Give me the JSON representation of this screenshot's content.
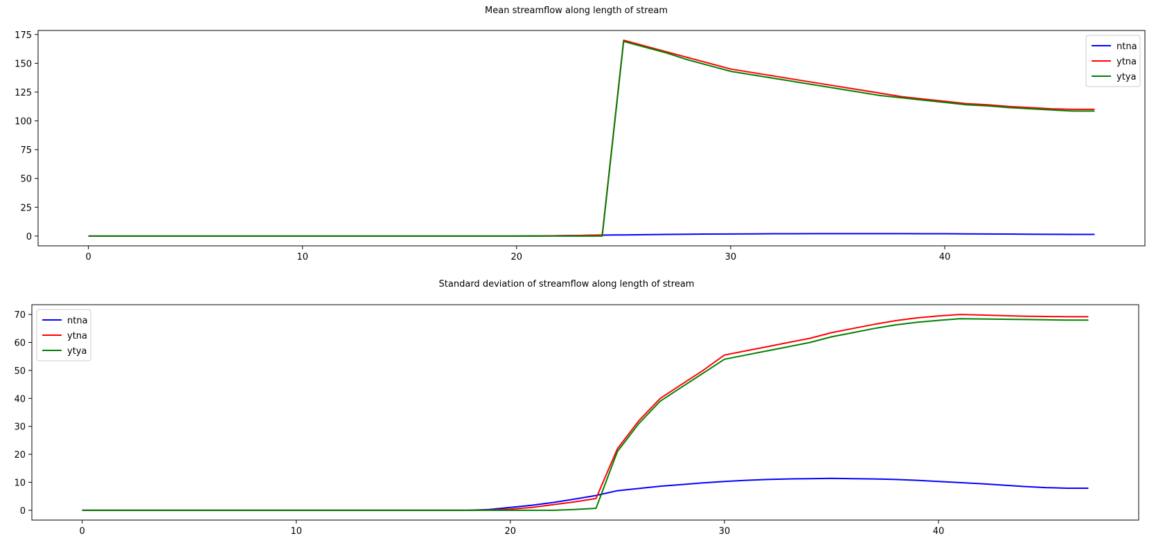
{
  "chart_data": [
    {
      "type": "line",
      "title": "Mean streamflow along length of stream",
      "xlabel": "",
      "ylabel": "",
      "xlim": [
        -2.35,
        49.35
      ],
      "ylim": [
        -8.5,
        178.5
      ],
      "xticks": [
        0,
        10,
        20,
        30,
        40
      ],
      "yticks": [
        0,
        25,
        50,
        75,
        100,
        125,
        150,
        175
      ],
      "grid": false,
      "legend_position": "top-right",
      "x": [
        0,
        1,
        2,
        3,
        4,
        5,
        6,
        7,
        8,
        9,
        10,
        11,
        12,
        13,
        14,
        15,
        16,
        17,
        18,
        19,
        20,
        21,
        22,
        23,
        24,
        25,
        26,
        27,
        28,
        29,
        30,
        31,
        32,
        33,
        34,
        35,
        36,
        37,
        38,
        39,
        40,
        41,
        42,
        43,
        44,
        45,
        46,
        47
      ],
      "series": [
        {
          "name": "ntna",
          "color": "#0000ff",
          "values": [
            0,
            0,
            0,
            0,
            0,
            0,
            0,
            0,
            0,
            0,
            0,
            0,
            0,
            0,
            0,
            0,
            0,
            0,
            0,
            0,
            0,
            0.1,
            0.3,
            0.5,
            0.8,
            1.0,
            1.2,
            1.4,
            1.6,
            1.7,
            1.8,
            1.9,
            2.0,
            2.0,
            2.1,
            2.1,
            2.1,
            2.1,
            2.1,
            2.0,
            2.0,
            1.9,
            1.8,
            1.7,
            1.6,
            1.5,
            1.4,
            1.4
          ]
        },
        {
          "name": "ytna",
          "color": "#ff0000",
          "values": [
            0,
            0,
            0,
            0,
            0,
            0,
            0,
            0,
            0,
            0,
            0,
            0,
            0,
            0,
            0,
            0,
            0,
            0,
            0,
            0,
            0,
            0.1,
            0.3,
            0.5,
            1.0,
            170,
            165,
            160,
            155,
            150,
            145,
            142,
            139,
            136,
            133,
            130,
            127,
            124,
            121,
            119,
            117,
            115,
            114,
            112.5,
            111.5,
            110.5,
            110,
            110
          ]
        },
        {
          "name": "ytya",
          "color": "#008000",
          "values": [
            0,
            0,
            0,
            0,
            0,
            0,
            0,
            0,
            0,
            0,
            0,
            0,
            0,
            0,
            0,
            0,
            0,
            0,
            0,
            0,
            0,
            0,
            0,
            0,
            0,
            169,
            164,
            159,
            153,
            148,
            143,
            140,
            137,
            134,
            131,
            128,
            125,
            122,
            120,
            118,
            116,
            114,
            113,
            111.5,
            110.5,
            109.5,
            108.5,
            108.5
          ]
        }
      ]
    },
    {
      "type": "line",
      "title": "Standard deviation of streamflow along length of stream",
      "xlabel": "",
      "ylabel": "",
      "xlim": [
        -2.35,
        49.35
      ],
      "ylim": [
        -3.5,
        73.5
      ],
      "xticks": [
        0,
        10,
        20,
        30,
        40
      ],
      "yticks": [
        0,
        10,
        20,
        30,
        40,
        50,
        60,
        70
      ],
      "grid": false,
      "legend_position": "top-left",
      "x": [
        0,
        1,
        2,
        3,
        4,
        5,
        6,
        7,
        8,
        9,
        10,
        11,
        12,
        13,
        14,
        15,
        16,
        17,
        18,
        19,
        20,
        21,
        22,
        23,
        24,
        25,
        26,
        27,
        28,
        29,
        30,
        31,
        32,
        33,
        34,
        35,
        36,
        37,
        38,
        39,
        40,
        41,
        42,
        43,
        44,
        45,
        46,
        47
      ],
      "series": [
        {
          "name": "ntna",
          "color": "#0000ff",
          "values": [
            0,
            0,
            0,
            0,
            0,
            0,
            0,
            0,
            0,
            0,
            0,
            0,
            0,
            0,
            0,
            0,
            0,
            0,
            0,
            0.3,
            1.0,
            1.8,
            2.8,
            4.0,
            5.3,
            7.0,
            7.8,
            8.6,
            9.2,
            9.8,
            10.3,
            10.7,
            11.0,
            11.2,
            11.3,
            11.4,
            11.3,
            11.2,
            11.0,
            10.7,
            10.3,
            9.9,
            9.5,
            9.0,
            8.5,
            8.1,
            7.9,
            7.9
          ]
        },
        {
          "name": "ytna",
          "color": "#ff0000",
          "values": [
            0,
            0,
            0,
            0,
            0,
            0,
            0,
            0,
            0,
            0,
            0,
            0,
            0,
            0,
            0,
            0,
            0,
            0,
            0,
            0.1,
            0.4,
            1.0,
            2.0,
            3.0,
            4.2,
            22,
            32,
            40,
            45,
            50,
            55.5,
            57,
            58.5,
            60,
            61.5,
            63.5,
            65,
            66.5,
            67.8,
            68.8,
            69.5,
            70,
            69.8,
            69.6,
            69.4,
            69.3,
            69.2,
            69.2
          ]
        },
        {
          "name": "ytya",
          "color": "#008000",
          "values": [
            0,
            0,
            0,
            0,
            0,
            0,
            0,
            0,
            0,
            0,
            0,
            0,
            0,
            0,
            0,
            0,
            0,
            0,
            0,
            0,
            0,
            0,
            0,
            0.3,
            0.7,
            21,
            31,
            39,
            44,
            49,
            54,
            55.5,
            57,
            58.5,
            60,
            62,
            63.5,
            65,
            66.3,
            67.2,
            67.9,
            68.5,
            68.4,
            68.3,
            68.2,
            68.1,
            68.0,
            68.0
          ]
        }
      ]
    }
  ]
}
